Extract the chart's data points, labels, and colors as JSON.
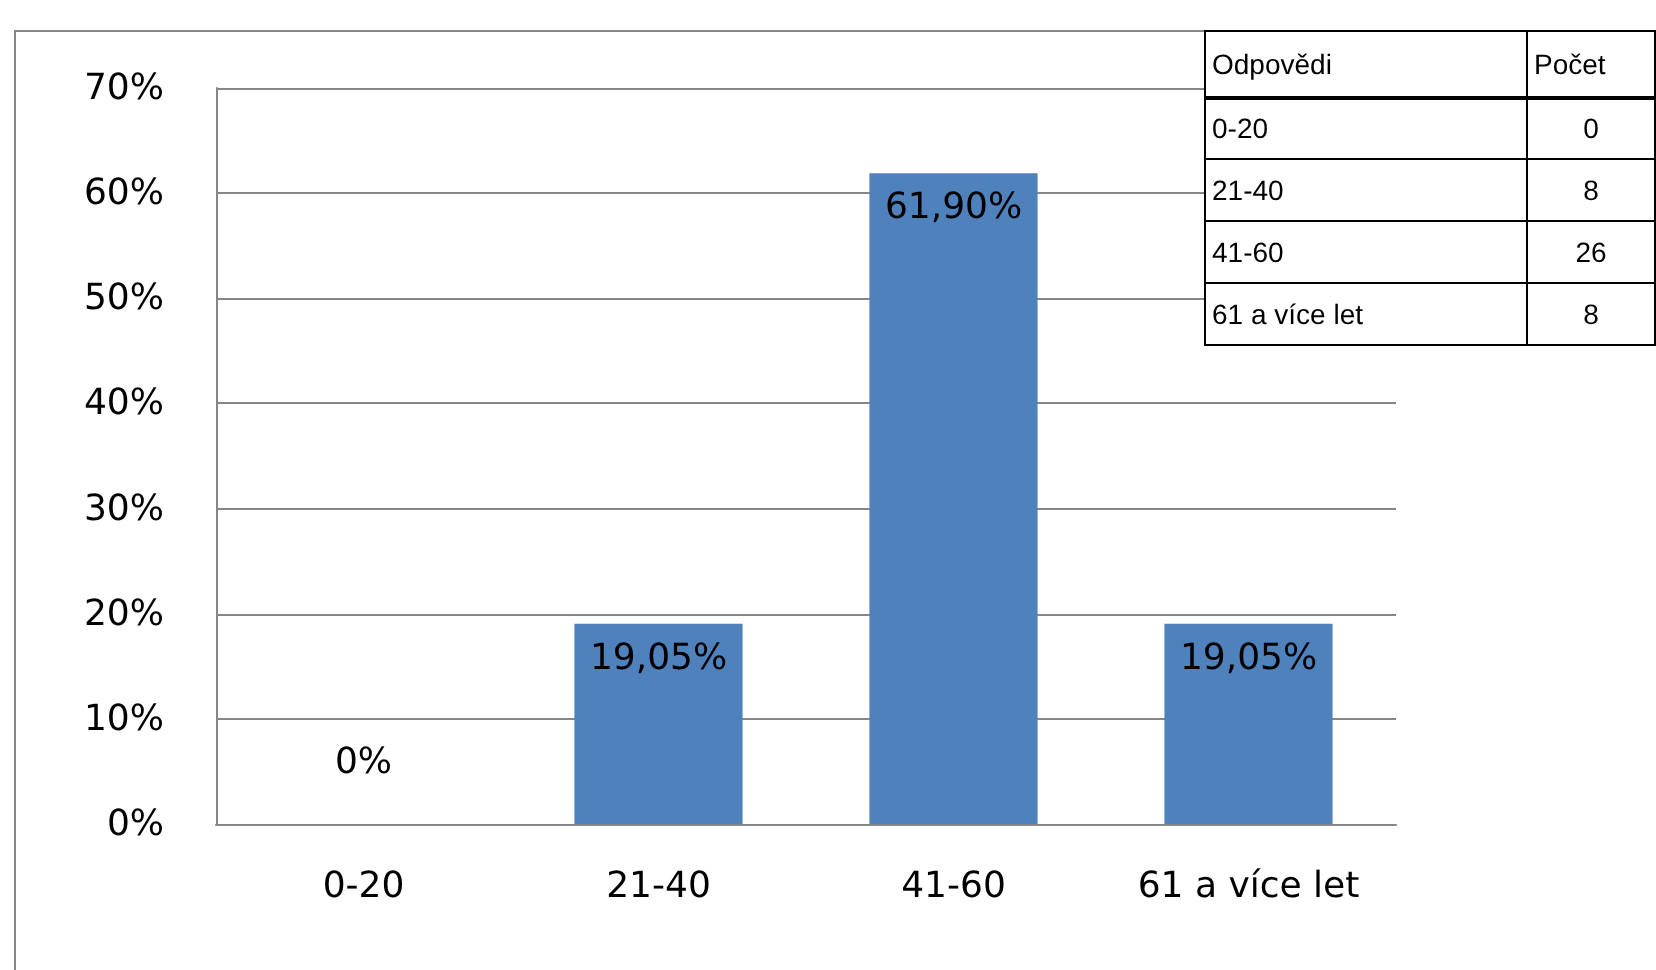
{
  "chart_data": {
    "type": "bar",
    "categories": [
      "0-20",
      "21-40",
      "41-60",
      "61 a více let"
    ],
    "values": [
      0,
      19.05,
      61.9,
      19.05
    ],
    "value_labels": [
      "0%",
      "19,05%",
      "61,90%",
      "19,05%"
    ],
    "color": "#4f81bd",
    "ylim": [
      0,
      70
    ],
    "yticks": [
      {
        "value": 0,
        "label": "0%"
      },
      {
        "value": 10,
        "label": "10%"
      },
      {
        "value": 20,
        "label": "20%"
      },
      {
        "value": 30,
        "label": "30%"
      },
      {
        "value": 40,
        "label": "40%"
      },
      {
        "value": 50,
        "label": "50%"
      },
      {
        "value": 60,
        "label": "60%"
      },
      {
        "value": 70,
        "label": "70%"
      }
    ],
    "grid": "y",
    "annotations": [
      "Odpovědi",
      "Počet",
      "0-20",
      "0",
      "21-40",
      "8",
      "41-60",
      "26",
      "61 a více let",
      "8"
    ]
  }
}
